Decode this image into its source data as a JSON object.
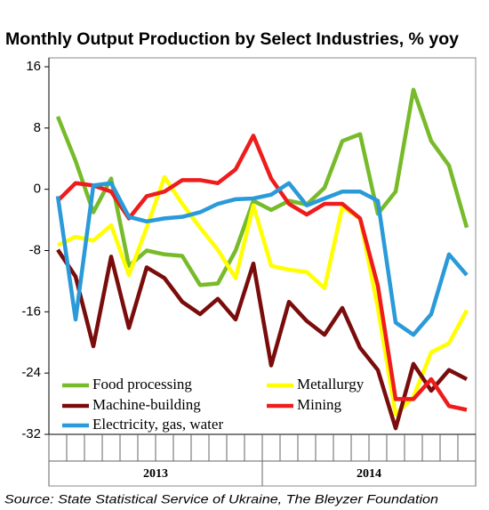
{
  "chart_data": {
    "type": "line",
    "title": "Monthly Output Production by Select Industries, % yoy",
    "source": "Source: State Statistical Service of Ukraine, The Bleyzer Foundation",
    "categories": [
      null,
      null,
      null,
      null,
      null,
      null,
      null,
      null,
      null,
      null,
      null,
      null,
      null,
      null,
      null,
      null,
      null,
      null,
      null,
      null,
      null,
      null,
      null,
      null
    ],
    "year_labels": [
      "2013",
      "2014"
    ],
    "ylim": [
      -32,
      16
    ],
    "yticks": [
      16,
      8,
      0,
      -8,
      -16,
      -24,
      -32
    ],
    "grid": false,
    "series": [
      {
        "name": "Food processing",
        "color": "#77bb2a",
        "values": [
          9.5,
          3.7,
          -3,
          1.4,
          -10,
          -8,
          -8.5,
          -8.7,
          -12.5,
          -12.3,
          -8,
          -1.5,
          -2.7,
          -1.5,
          -2,
          0.2,
          6.3,
          7.2,
          -3.2,
          -0.3,
          13,
          6.3,
          3.1,
          -5
        ]
      },
      {
        "name": "Metallurgy",
        "color": "#ffff00",
        "values": [
          -7.3,
          -6.2,
          -6.7,
          -4.7,
          -11.2,
          -5,
          1.6,
          -1.9,
          -5,
          -7.9,
          -11.6,
          -2.1,
          -10,
          -10.5,
          -10.8,
          -12.9,
          -2.3,
          -3.8,
          -15.5,
          -29.4,
          -27.1,
          -21.3,
          -20.1,
          -15.8
        ]
      },
      {
        "name": "Machine-building",
        "color": "#7a0c0c",
        "values": [
          -7.9,
          -11.4,
          -20.5,
          -8.8,
          -18.1,
          -10.2,
          -11.6,
          -14.7,
          -16.3,
          -14.3,
          -17,
          -9.7,
          -23,
          -14.7,
          -17.2,
          -19,
          -15.5,
          -20.7,
          -23.6,
          -31.2,
          -22.8,
          -26.3,
          -23.6,
          -24.8
        ]
      },
      {
        "name": "Mining",
        "color": "#ee1c1c",
        "values": [
          -1.5,
          0.8,
          0.5,
          -0.3,
          -3.8,
          -0.9,
          -0.3,
          1.2,
          1.2,
          0.8,
          2.6,
          7,
          1.4,
          -1.9,
          -3.3,
          -1.9,
          -1.9,
          -3.8,
          -12.6,
          -27.4,
          -27.4,
          -24.8,
          -28.3,
          -28.8
        ]
      },
      {
        "name": "Electricity, gas, water",
        "color": "#2a9ad8",
        "values": [
          -0.9,
          -17,
          0.5,
          0.8,
          -3.6,
          -4.2,
          -3.8,
          -3.6,
          -3,
          -1.9,
          -1.3,
          -1.2,
          -0.7,
          0.8,
          -2.1,
          -1.2,
          -0.3,
          -0.3,
          -1.5,
          -17.4,
          -19,
          -16.3,
          -8.5,
          -11.2
        ]
      }
    ]
  }
}
